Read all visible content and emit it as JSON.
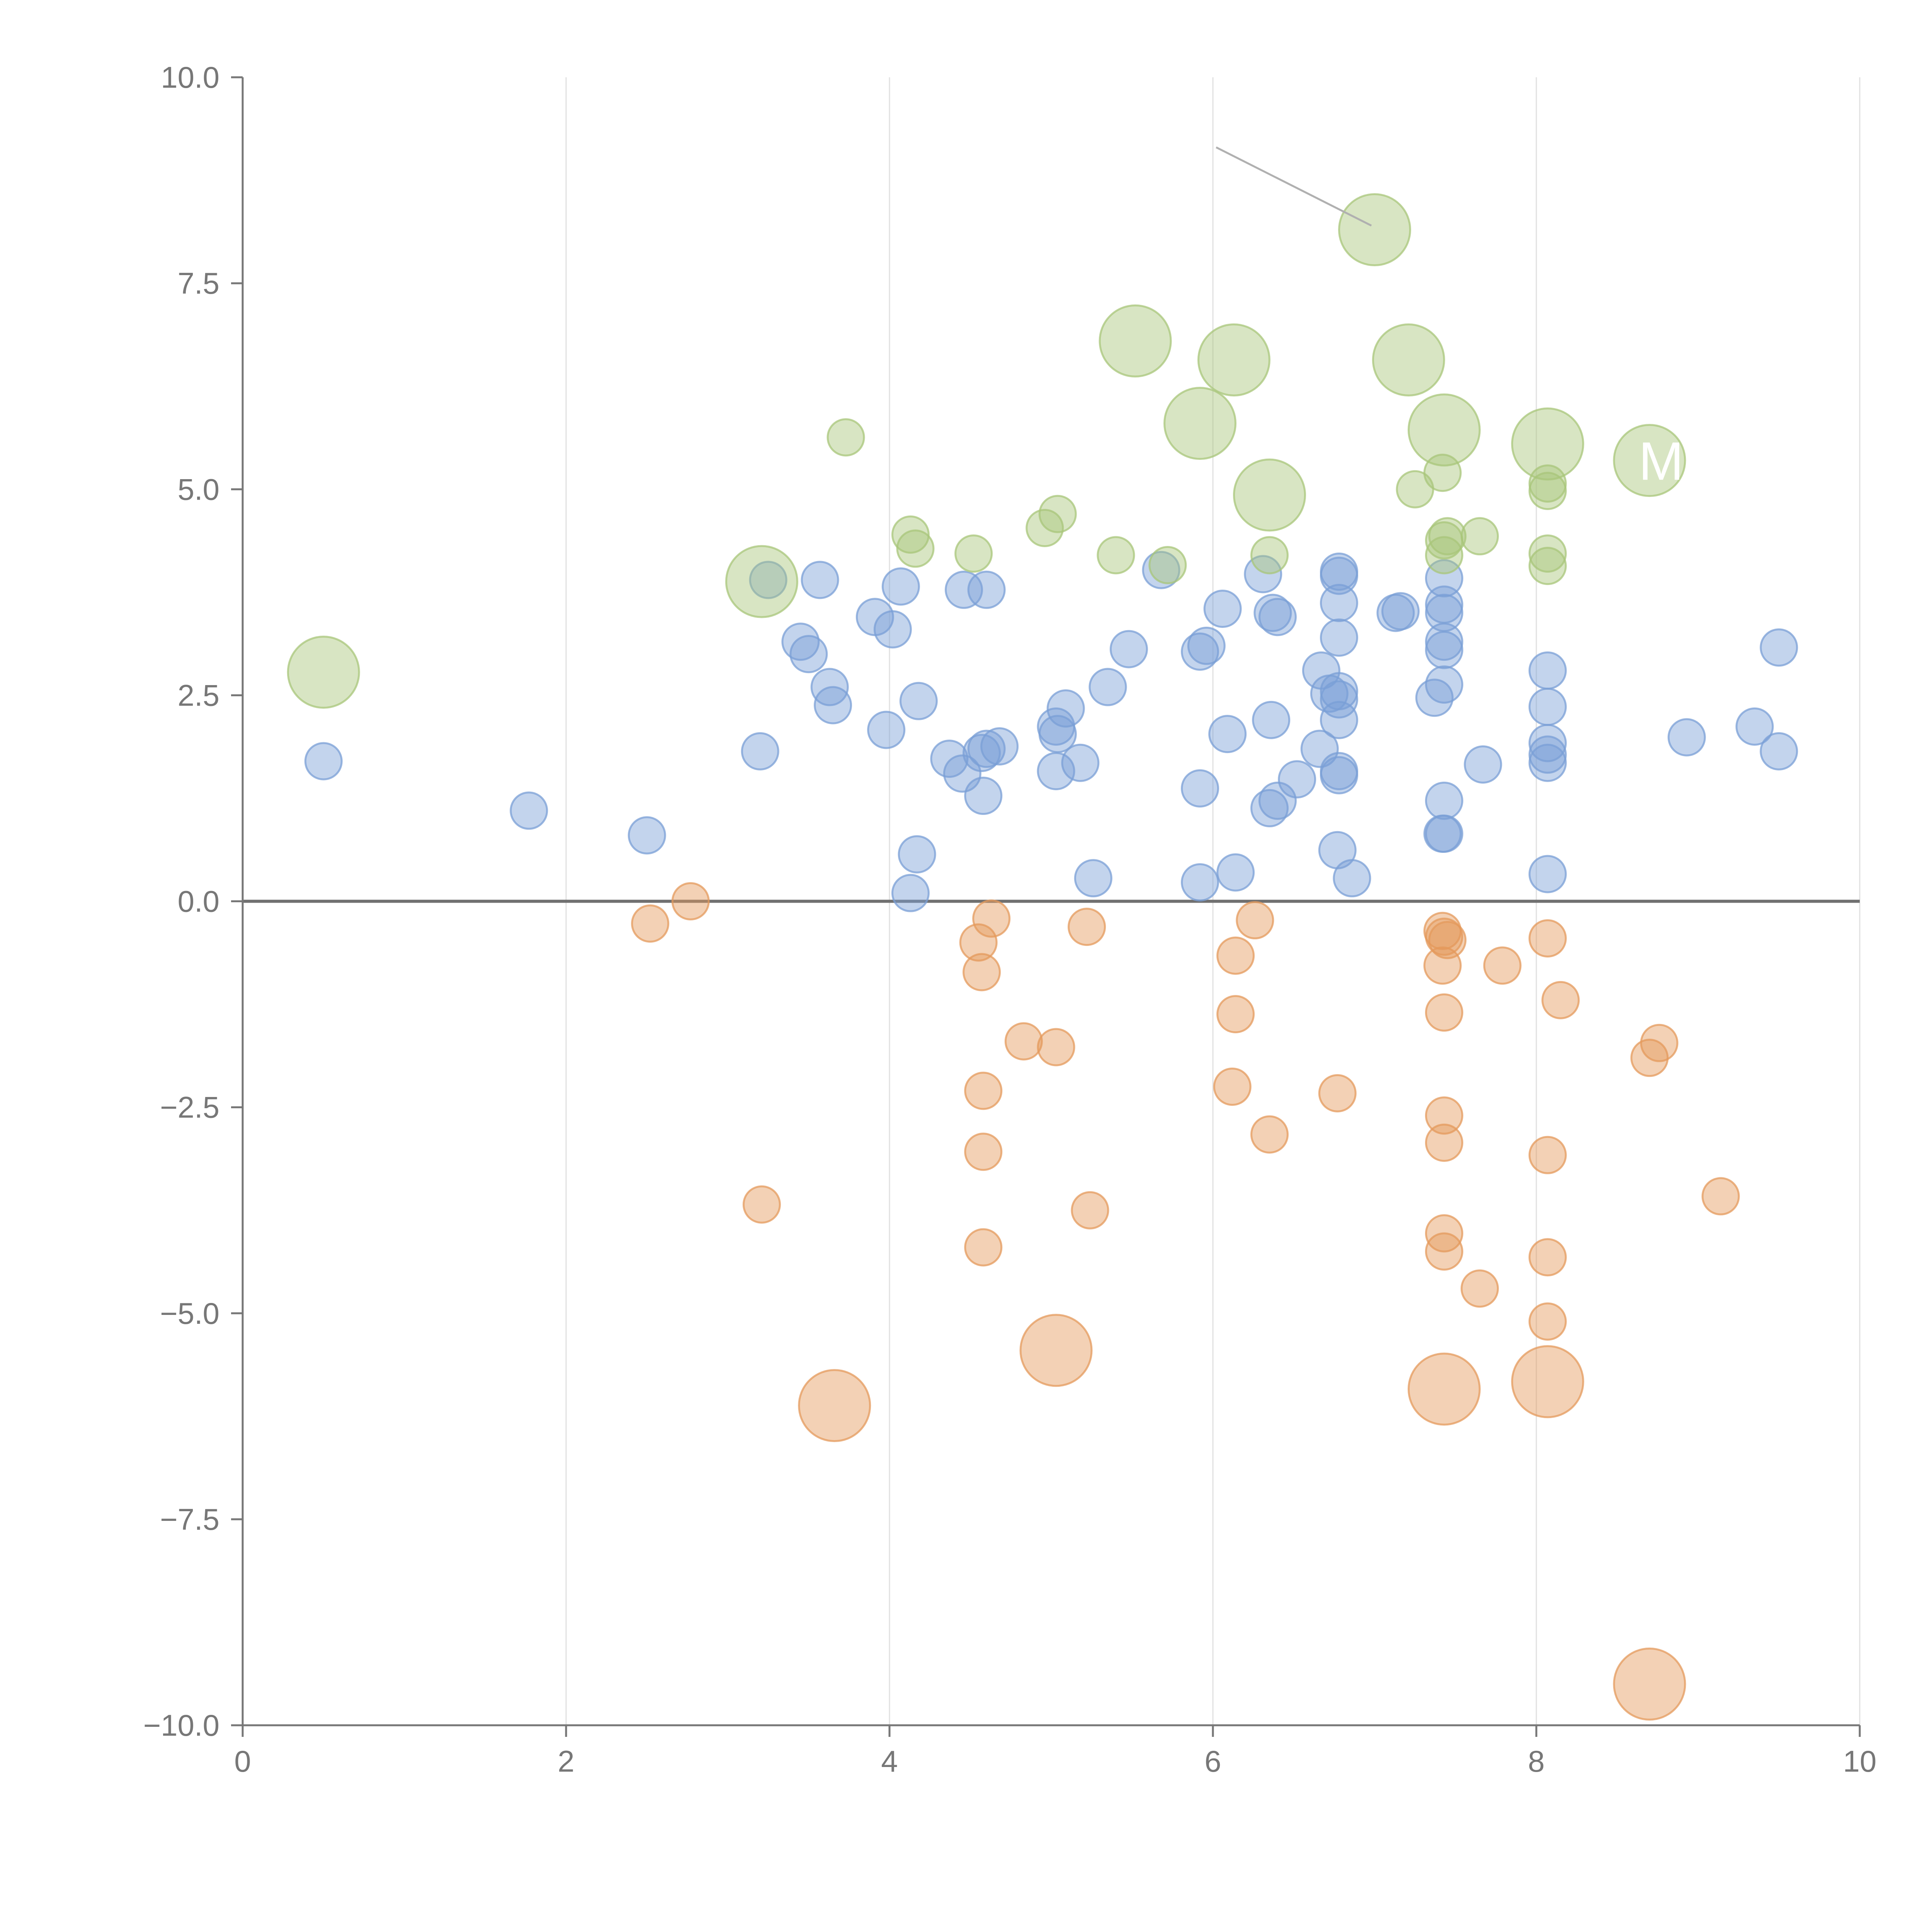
{
  "chart_data": {
    "type": "scatter",
    "title": "",
    "xlabel": "",
    "ylabel": "",
    "xlim": [
      0,
      10
    ],
    "ylim": [
      -10,
      10
    ],
    "x_ticks": [
      0,
      2,
      4,
      6,
      8,
      10
    ],
    "x_tick_labels": [
      "0",
      "2",
      "4",
      "6",
      "8",
      "10"
    ],
    "y_ticks": [
      -10,
      -7.5,
      -5,
      -2.5,
      0,
      2.5,
      5,
      7.5,
      10
    ],
    "y_tick_labels": [
      "−10.0",
      "−7.5",
      "−5.0",
      "−2.5",
      "0.0",
      "2.5",
      "5.0",
      "7.5",
      "10.0"
    ],
    "grid": "vertical lines at x ticks",
    "zero_line": true,
    "legend": "none",
    "colors": {
      "blue": "#7a9fd6",
      "orange": "#e49a5c",
      "green": "#a8c57a",
      "axis": "#777777",
      "grid": "#e0e0e0",
      "zero_line": "#707070",
      "annotation_line": "#b0b0b0"
    },
    "series": [
      {
        "color": "blue",
        "size_scale": "small",
        "points": [
          [
            0.5,
            1.7
          ],
          [
            1.77,
            1.1
          ],
          [
            2.5,
            0.8
          ],
          [
            3.2,
            1.82
          ],
          [
            3.25,
            3.9
          ],
          [
            3.45,
            3.15
          ],
          [
            3.5,
            3.0
          ],
          [
            3.57,
            3.9
          ],
          [
            3.63,
            2.6
          ],
          [
            3.65,
            2.38
          ],
          [
            3.91,
            3.45
          ],
          [
            3.98,
            2.08
          ],
          [
            4.02,
            3.3
          ],
          [
            4.07,
            3.82
          ],
          [
            4.13,
            0.1
          ],
          [
            4.17,
            0.57
          ],
          [
            4.18,
            2.43
          ],
          [
            4.37,
            1.73
          ],
          [
            4.45,
            1.55
          ],
          [
            4.46,
            3.78
          ],
          [
            4.57,
            1.8
          ],
          [
            4.58,
            1.28
          ],
          [
            4.6,
            3.78
          ],
          [
            4.6,
            1.85
          ],
          [
            4.68,
            1.88
          ],
          [
            5.03,
            1.58
          ],
          [
            5.03,
            2.12
          ],
          [
            5.04,
            2.03
          ],
          [
            5.09,
            2.34
          ],
          [
            5.18,
            1.68
          ],
          [
            5.26,
            0.28
          ],
          [
            5.35,
            2.6
          ],
          [
            5.48,
            3.06
          ],
          [
            5.68,
            4.02
          ],
          [
            5.92,
            0.23
          ],
          [
            5.92,
            1.37
          ],
          [
            5.92,
            3.03
          ],
          [
            5.96,
            3.1
          ],
          [
            6.06,
            3.55
          ],
          [
            6.09,
            2.03
          ],
          [
            6.14,
            0.35
          ],
          [
            6.31,
            3.97
          ],
          [
            6.35,
            1.13
          ],
          [
            6.36,
            2.2
          ],
          [
            6.37,
            3.5
          ],
          [
            6.4,
            1.22
          ],
          [
            6.4,
            3.45
          ],
          [
            6.52,
            1.48
          ],
          [
            6.66,
            1.85
          ],
          [
            6.67,
            2.8
          ],
          [
            6.72,
            2.52
          ],
          [
            6.77,
            0.62
          ],
          [
            6.78,
            1.58
          ],
          [
            6.78,
            1.53
          ],
          [
            6.78,
            2.2
          ],
          [
            6.78,
            2.45
          ],
          [
            6.78,
            2.55
          ],
          [
            6.78,
            3.2
          ],
          [
            6.78,
            3.62
          ],
          [
            6.78,
            3.95
          ],
          [
            6.78,
            4.0
          ],
          [
            6.86,
            0.28
          ],
          [
            7.13,
            3.5
          ],
          [
            7.16,
            3.52
          ],
          [
            7.37,
            2.47
          ],
          [
            7.42,
            0.82
          ],
          [
            7.43,
            1.22
          ],
          [
            7.43,
            0.82
          ],
          [
            7.43,
            2.63
          ],
          [
            7.43,
            3.05
          ],
          [
            7.43,
            3.15
          ],
          [
            7.43,
            3.5
          ],
          [
            7.43,
            3.6
          ],
          [
            7.43,
            3.92
          ],
          [
            7.67,
            1.66
          ],
          [
            8.07,
            0.33
          ],
          [
            8.07,
            1.68
          ],
          [
            8.07,
            1.78
          ],
          [
            8.07,
            1.92
          ],
          [
            8.07,
            2.36
          ],
          [
            8.07,
            2.8
          ],
          [
            8.93,
            1.99
          ],
          [
            9.35,
            2.12
          ],
          [
            9.5,
            3.08
          ],
          [
            9.5,
            1.82
          ]
        ]
      },
      {
        "color": "orange",
        "size_scale": "small",
        "points": [
          [
            2.52,
            -0.27
          ],
          [
            2.77,
            0.0
          ],
          [
            3.21,
            -3.68
          ],
          [
            4.55,
            -0.5
          ],
          [
            4.57,
            -0.86
          ],
          [
            4.58,
            -2.3
          ],
          [
            4.58,
            -3.04
          ],
          [
            4.58,
            -4.2
          ],
          [
            4.63,
            -0.21
          ],
          [
            4.83,
            -1.7
          ],
          [
            5.03,
            -1.77
          ],
          [
            5.22,
            -0.31
          ],
          [
            5.24,
            -3.75
          ],
          [
            6.12,
            -2.25
          ],
          [
            6.14,
            -0.66
          ],
          [
            6.14,
            -1.37
          ],
          [
            6.26,
            -0.23
          ],
          [
            6.35,
            -2.83
          ],
          [
            6.77,
            -2.33
          ],
          [
            7.42,
            -0.78
          ],
          [
            7.42,
            -0.36
          ],
          [
            7.43,
            -0.43
          ],
          [
            7.43,
            -1.35
          ],
          [
            7.43,
            -2.6
          ],
          [
            7.43,
            -2.93
          ],
          [
            7.43,
            -4.03
          ],
          [
            7.43,
            -4.25
          ],
          [
            7.45,
            -0.47
          ],
          [
            7.65,
            -4.7
          ],
          [
            7.79,
            -0.78
          ],
          [
            8.07,
            -0.45
          ],
          [
            8.07,
            -3.08
          ],
          [
            8.07,
            -4.32
          ],
          [
            8.07,
            -5.1
          ],
          [
            8.15,
            -1.2
          ],
          [
            8.7,
            -1.9
          ],
          [
            8.76,
            -1.72
          ],
          [
            9.14,
            -3.58
          ]
        ]
      },
      {
        "color": "green",
        "size_scale": "small",
        "points": [
          [
            3.73,
            5.63
          ],
          [
            4.13,
            4.45
          ],
          [
            4.16,
            4.28
          ],
          [
            4.52,
            4.22
          ],
          [
            4.96,
            4.53
          ],
          [
            5.04,
            4.7
          ],
          [
            5.4,
            4.2
          ],
          [
            5.72,
            4.08
          ],
          [
            6.35,
            4.2
          ],
          [
            7.25,
            5.0
          ],
          [
            7.42,
            5.2
          ],
          [
            7.43,
            4.2
          ],
          [
            7.43,
            4.38
          ],
          [
            7.45,
            4.43
          ],
          [
            7.65,
            4.43
          ],
          [
            8.07,
            4.07
          ],
          [
            8.07,
            4.22
          ],
          [
            8.07,
            4.98
          ],
          [
            8.07,
            5.07
          ]
        ]
      },
      {
        "color": "green",
        "size_scale": "large",
        "points": [
          [
            0.5,
            2.78
          ],
          [
            3.21,
            3.88
          ],
          [
            5.52,
            6.8
          ],
          [
            5.92,
            5.8
          ],
          [
            6.13,
            6.57
          ],
          [
            6.35,
            4.93
          ],
          [
            7.0,
            8.15
          ],
          [
            7.21,
            6.57
          ],
          [
            7.43,
            5.72
          ],
          [
            8.07,
            5.55
          ],
          [
            8.7,
            5.35
          ]
        ]
      },
      {
        "color": "orange",
        "size_scale": "large",
        "points": [
          [
            3.66,
            -6.12
          ],
          [
            5.03,
            -5.45
          ],
          [
            7.43,
            -5.92
          ],
          [
            8.07,
            -5.83
          ],
          [
            8.7,
            -9.5
          ]
        ]
      }
    ],
    "annotations": [
      {
        "text": "M",
        "x": 8.7,
        "y": 5.35
      }
    ]
  }
}
